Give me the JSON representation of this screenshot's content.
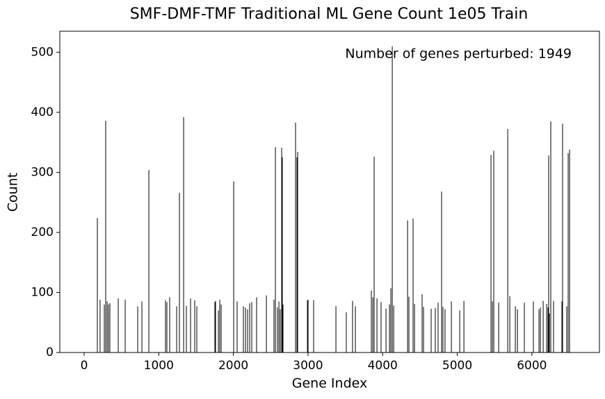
{
  "chart_data": {
    "type": "bar",
    "title": "SMF-DMF-TMF Traditional ML Gene Count 1e05 Train",
    "xlabel": "Gene Index",
    "ylabel": "Count",
    "annotation": "Number of genes perturbed: 1949",
    "color": "#000000",
    "x": [
      177,
      214,
      270,
      289,
      308,
      326,
      345,
      457,
      550,
      718,
      774,
      867,
      1090,
      1109,
      1146,
      1240,
      1277,
      1333,
      1370,
      1426,
      1482,
      1510,
      1752,
      1761,
      1799,
      1817,
      1836,
      2004,
      2050,
      2134,
      2162,
      2190,
      2218,
      2246,
      2311,
      2442,
      2544,
      2563,
      2591,
      2610,
      2628,
      2647,
      2656,
      2665,
      2833,
      2852,
      2861,
      2992,
      3001,
      3075,
      3374,
      3513,
      3597,
      3635,
      3849,
      3868,
      3886,
      3924,
      3979,
      4045,
      4092,
      4110,
      4129,
      4148,
      4334,
      4352,
      4408,
      4427,
      4529,
      4548,
      4650,
      4706,
      4743,
      4790,
      4808,
      4836,
      4921,
      5033,
      5089,
      5452,
      5471,
      5489,
      5555,
      5676,
      5704,
      5778,
      5806,
      5899,
      6020,
      6095,
      6114,
      6151,
      6198,
      6216,
      6225,
      6235,
      6253,
      6290,
      6402,
      6411,
      6467,
      6486,
      6505
    ],
    "values": [
      224,
      88,
      80,
      386,
      85,
      80,
      82,
      90,
      88,
      77,
      85,
      304,
      87,
      84,
      92,
      77,
      266,
      392,
      78,
      90,
      87,
      77,
      84,
      86,
      70,
      88,
      80,
      285,
      85,
      77,
      75,
      72,
      82,
      84,
      92,
      95,
      88,
      342,
      75,
      85,
      72,
      341,
      325,
      80,
      383,
      325,
      334,
      87,
      88,
      87,
      77,
      67,
      86,
      77,
      103,
      92,
      326,
      90,
      84,
      73,
      80,
      107,
      510,
      78,
      220,
      93,
      223,
      81,
      97,
      76,
      73,
      74,
      83,
      268,
      76,
      72,
      85,
      70,
      86,
      329,
      85,
      336,
      83,
      372,
      94,
      77,
      72,
      83,
      85,
      72,
      75,
      86,
      81,
      75,
      328,
      65,
      385,
      86,
      85,
      381,
      77,
      332,
      338
    ],
    "xlim": [
      -326,
      6905
    ],
    "ylim": [
      0,
      535
    ],
    "xticks": [
      0,
      1000,
      2000,
      3000,
      4000,
      5000,
      6000
    ],
    "yticks": [
      0,
      100,
      200,
      300,
      400,
      500
    ],
    "grid": false
  }
}
